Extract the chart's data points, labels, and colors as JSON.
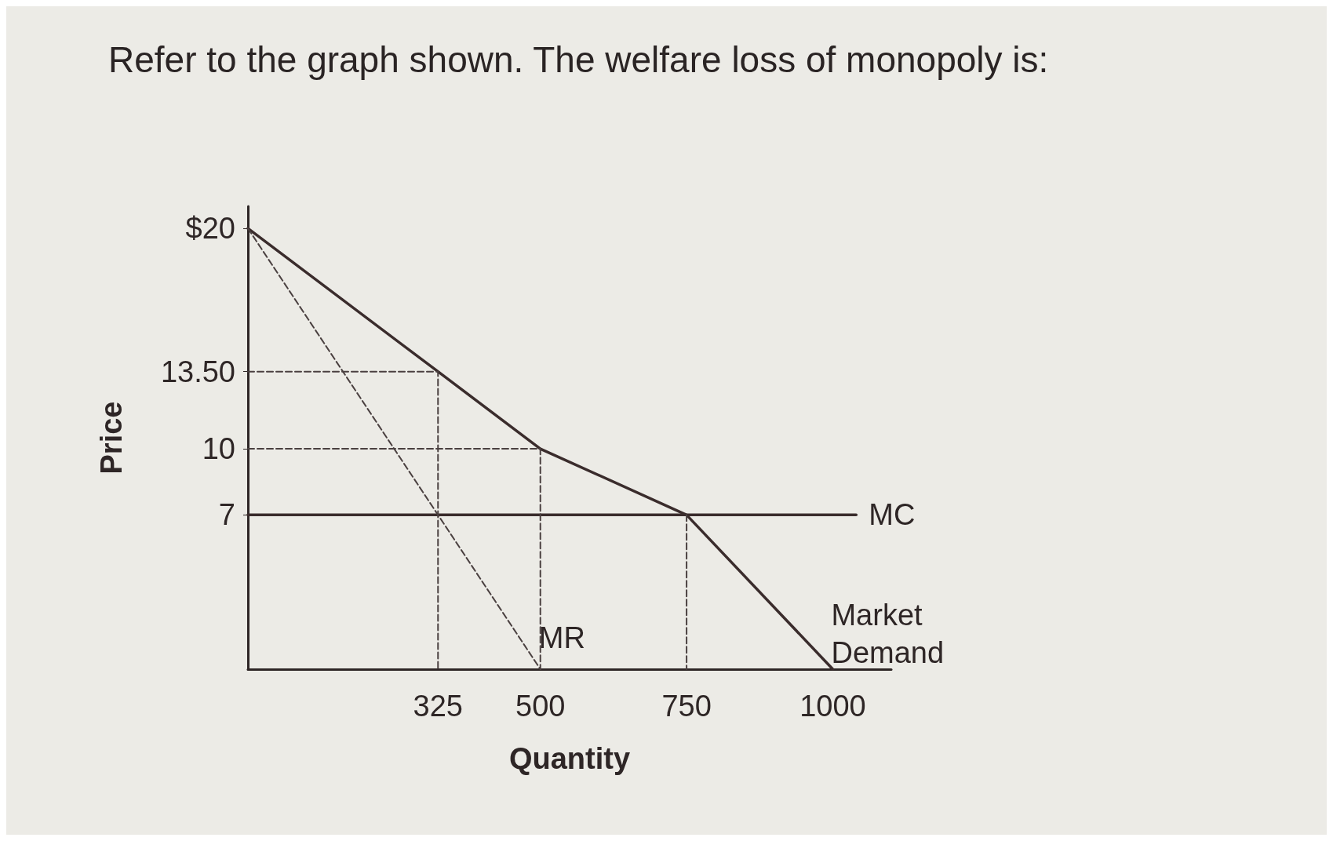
{
  "chart_data": {
    "type": "line",
    "title": "Refer to the graph shown. The welfare loss of monopoly is:",
    "xlabel": "Quantity",
    "ylabel": "Price",
    "xlim": [
      0,
      1100
    ],
    "ylim": [
      0,
      21
    ],
    "xticks": [
      325,
      500,
      750,
      1000
    ],
    "yticks": [
      {
        "value": 20,
        "label": "$20"
      },
      {
        "value": 13.5,
        "label": "13.50"
      },
      10,
      7
    ],
    "grid": false,
    "marker": "none",
    "line_style": "solid",
    "series": [
      {
        "name": "Market Demand",
        "color": "#3a2c2c",
        "x": [
          0,
          325,
          500,
          750,
          1000
        ],
        "values": [
          20,
          13.5,
          10,
          7,
          0
        ]
      },
      {
        "name": "MC",
        "color": "#3a2c2c",
        "x": [
          0,
          1040
        ],
        "values": [
          7,
          7
        ]
      },
      {
        "name": "MR",
        "color": "#4a4040",
        "x": [
          0,
          325,
          500
        ],
        "values": [
          20,
          7,
          0
        ],
        "line_style": "dashed"
      },
      {
        "color": "#4a4040",
        "x": [
          0,
          325,
          325
        ],
        "values": [
          13.5,
          13.5,
          0
        ],
        "line_style": "dashed"
      },
      {
        "color": "#4a4040",
        "x": [
          0,
          500,
          500
        ],
        "values": [
          10,
          10,
          0
        ],
        "line_style": "dashed"
      },
      {
        "color": "#4a4040",
        "x": [
          750,
          750
        ],
        "values": [
          7,
          0
        ],
        "line_style": "dashed"
      }
    ]
  }
}
